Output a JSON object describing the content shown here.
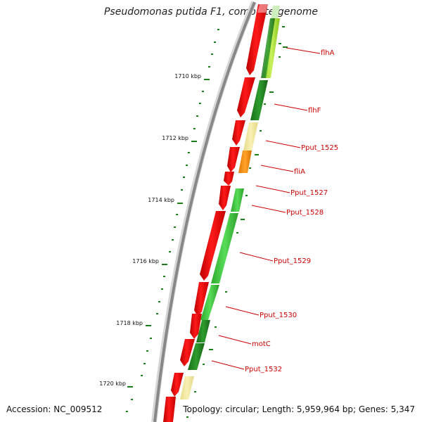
{
  "title": "Pseudomonas putida F1, complete genome",
  "footer": {
    "accession": "Accession: NC_009512",
    "summary": "Topology: circular; Length: 5,959,964 bp; Genes: 5,347"
  },
  "map": {
    "ticks": [
      {
        "label": "1710 kbp"
      },
      {
        "label": "1712 kbp"
      },
      {
        "label": "1714 kbp"
      },
      {
        "label": "1716 kbp"
      },
      {
        "label": "1718 kbp"
      },
      {
        "label": "1720 kbp"
      }
    ],
    "gene_labels": [
      "flhA",
      "flhF",
      "Pput_1525",
      "fliA",
      "Pput_1527",
      "Pput_1528",
      "Pput_1529",
      "Pput_1530",
      "motC",
      "Pput_1532"
    ]
  },
  "colors": {
    "backbone": "#888888",
    "cds": "#ee1111",
    "gene_dark_green": "#228b22",
    "gene_light_green": "#44cc44",
    "gene_lime": "#a8e23a",
    "gene_orange": "#ff8c00",
    "gene_pale": "#f0e68c",
    "tick": "#1a7f1a",
    "label": "#cc0000"
  }
}
